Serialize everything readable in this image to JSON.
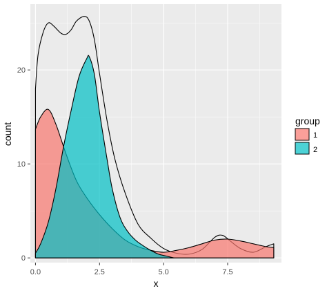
{
  "chart_data": {
    "type": "area",
    "xlabel": "x",
    "ylabel": "count",
    "xlim": [
      -0.2,
      9.6
    ],
    "ylim": [
      -0.5,
      27
    ],
    "x_ticks": [
      0,
      2.5,
      5,
      7.5
    ],
    "x_tick_labels": [
      "0.0",
      "2.5",
      "5.0",
      "7.5"
    ],
    "y_ticks": [
      0,
      10,
      20
    ],
    "y_tick_labels": [
      "0",
      "10",
      "20"
    ],
    "grid": true,
    "legend": {
      "title": "group",
      "position": "right",
      "items": [
        {
          "label": "1",
          "color": "#F8766D"
        },
        {
          "label": "2",
          "color": "#00BFC4"
        }
      ]
    },
    "series": [
      {
        "name": "1",
        "color": "#F8766D",
        "x": [
          0,
          0.2,
          0.5,
          0.8,
          1.2,
          1.6,
          2.0,
          2.5,
          3.0,
          3.5,
          4.0,
          4.5,
          5.0,
          5.5,
          6.0,
          6.5,
          7.0,
          7.5,
          8.0,
          8.5,
          9.0,
          9.3
        ],
        "values": [
          13.7,
          15.0,
          15.8,
          14.2,
          11.0,
          8.2,
          6.4,
          4.6,
          3.1,
          1.9,
          1.2,
          0.8,
          0.6,
          0.8,
          1.1,
          1.5,
          1.9,
          2.0,
          1.8,
          1.5,
          1.2,
          1.1
        ]
      },
      {
        "name": "2",
        "color": "#00BFC4",
        "x": [
          0,
          0.2,
          0.5,
          0.8,
          1.1,
          1.4,
          1.7,
          2.0,
          2.1,
          2.3,
          2.5,
          2.8,
          3.0,
          3.3,
          3.6,
          3.9,
          4.2,
          4.5,
          4.8,
          5.1,
          5.4
        ],
        "values": [
          0.5,
          1.5,
          3.8,
          7.4,
          11.9,
          15.8,
          19.3,
          21.2,
          21.4,
          19.5,
          15.5,
          10.4,
          7.3,
          4.3,
          2.8,
          1.9,
          1.3,
          0.8,
          0.4,
          0.2,
          0
        ]
      },
      {
        "name": "total",
        "color": "none",
        "x": [
          0,
          0.1,
          0.3,
          0.5,
          0.7,
          1.0,
          1.2,
          1.4,
          1.6,
          1.9,
          2.1,
          2.3,
          2.5,
          2.8,
          3.1,
          3.5,
          4.0,
          4.5,
          5.0,
          5.5,
          6.0,
          6.5,
          7.0,
          7.3,
          7.6,
          8.0,
          8.5,
          9.0,
          9.3
        ],
        "values": [
          18,
          21.6,
          24.0,
          25.0,
          24.7,
          23.9,
          23.8,
          24.3,
          25.2,
          25.7,
          25.2,
          23.2,
          19.6,
          14.5,
          10.5,
          6.9,
          3.6,
          2.1,
          1.0,
          0.5,
          0.4,
          0.9,
          2.2,
          2.4,
          1.8,
          1.0,
          0.6,
          1.2,
          1.5
        ]
      }
    ]
  }
}
